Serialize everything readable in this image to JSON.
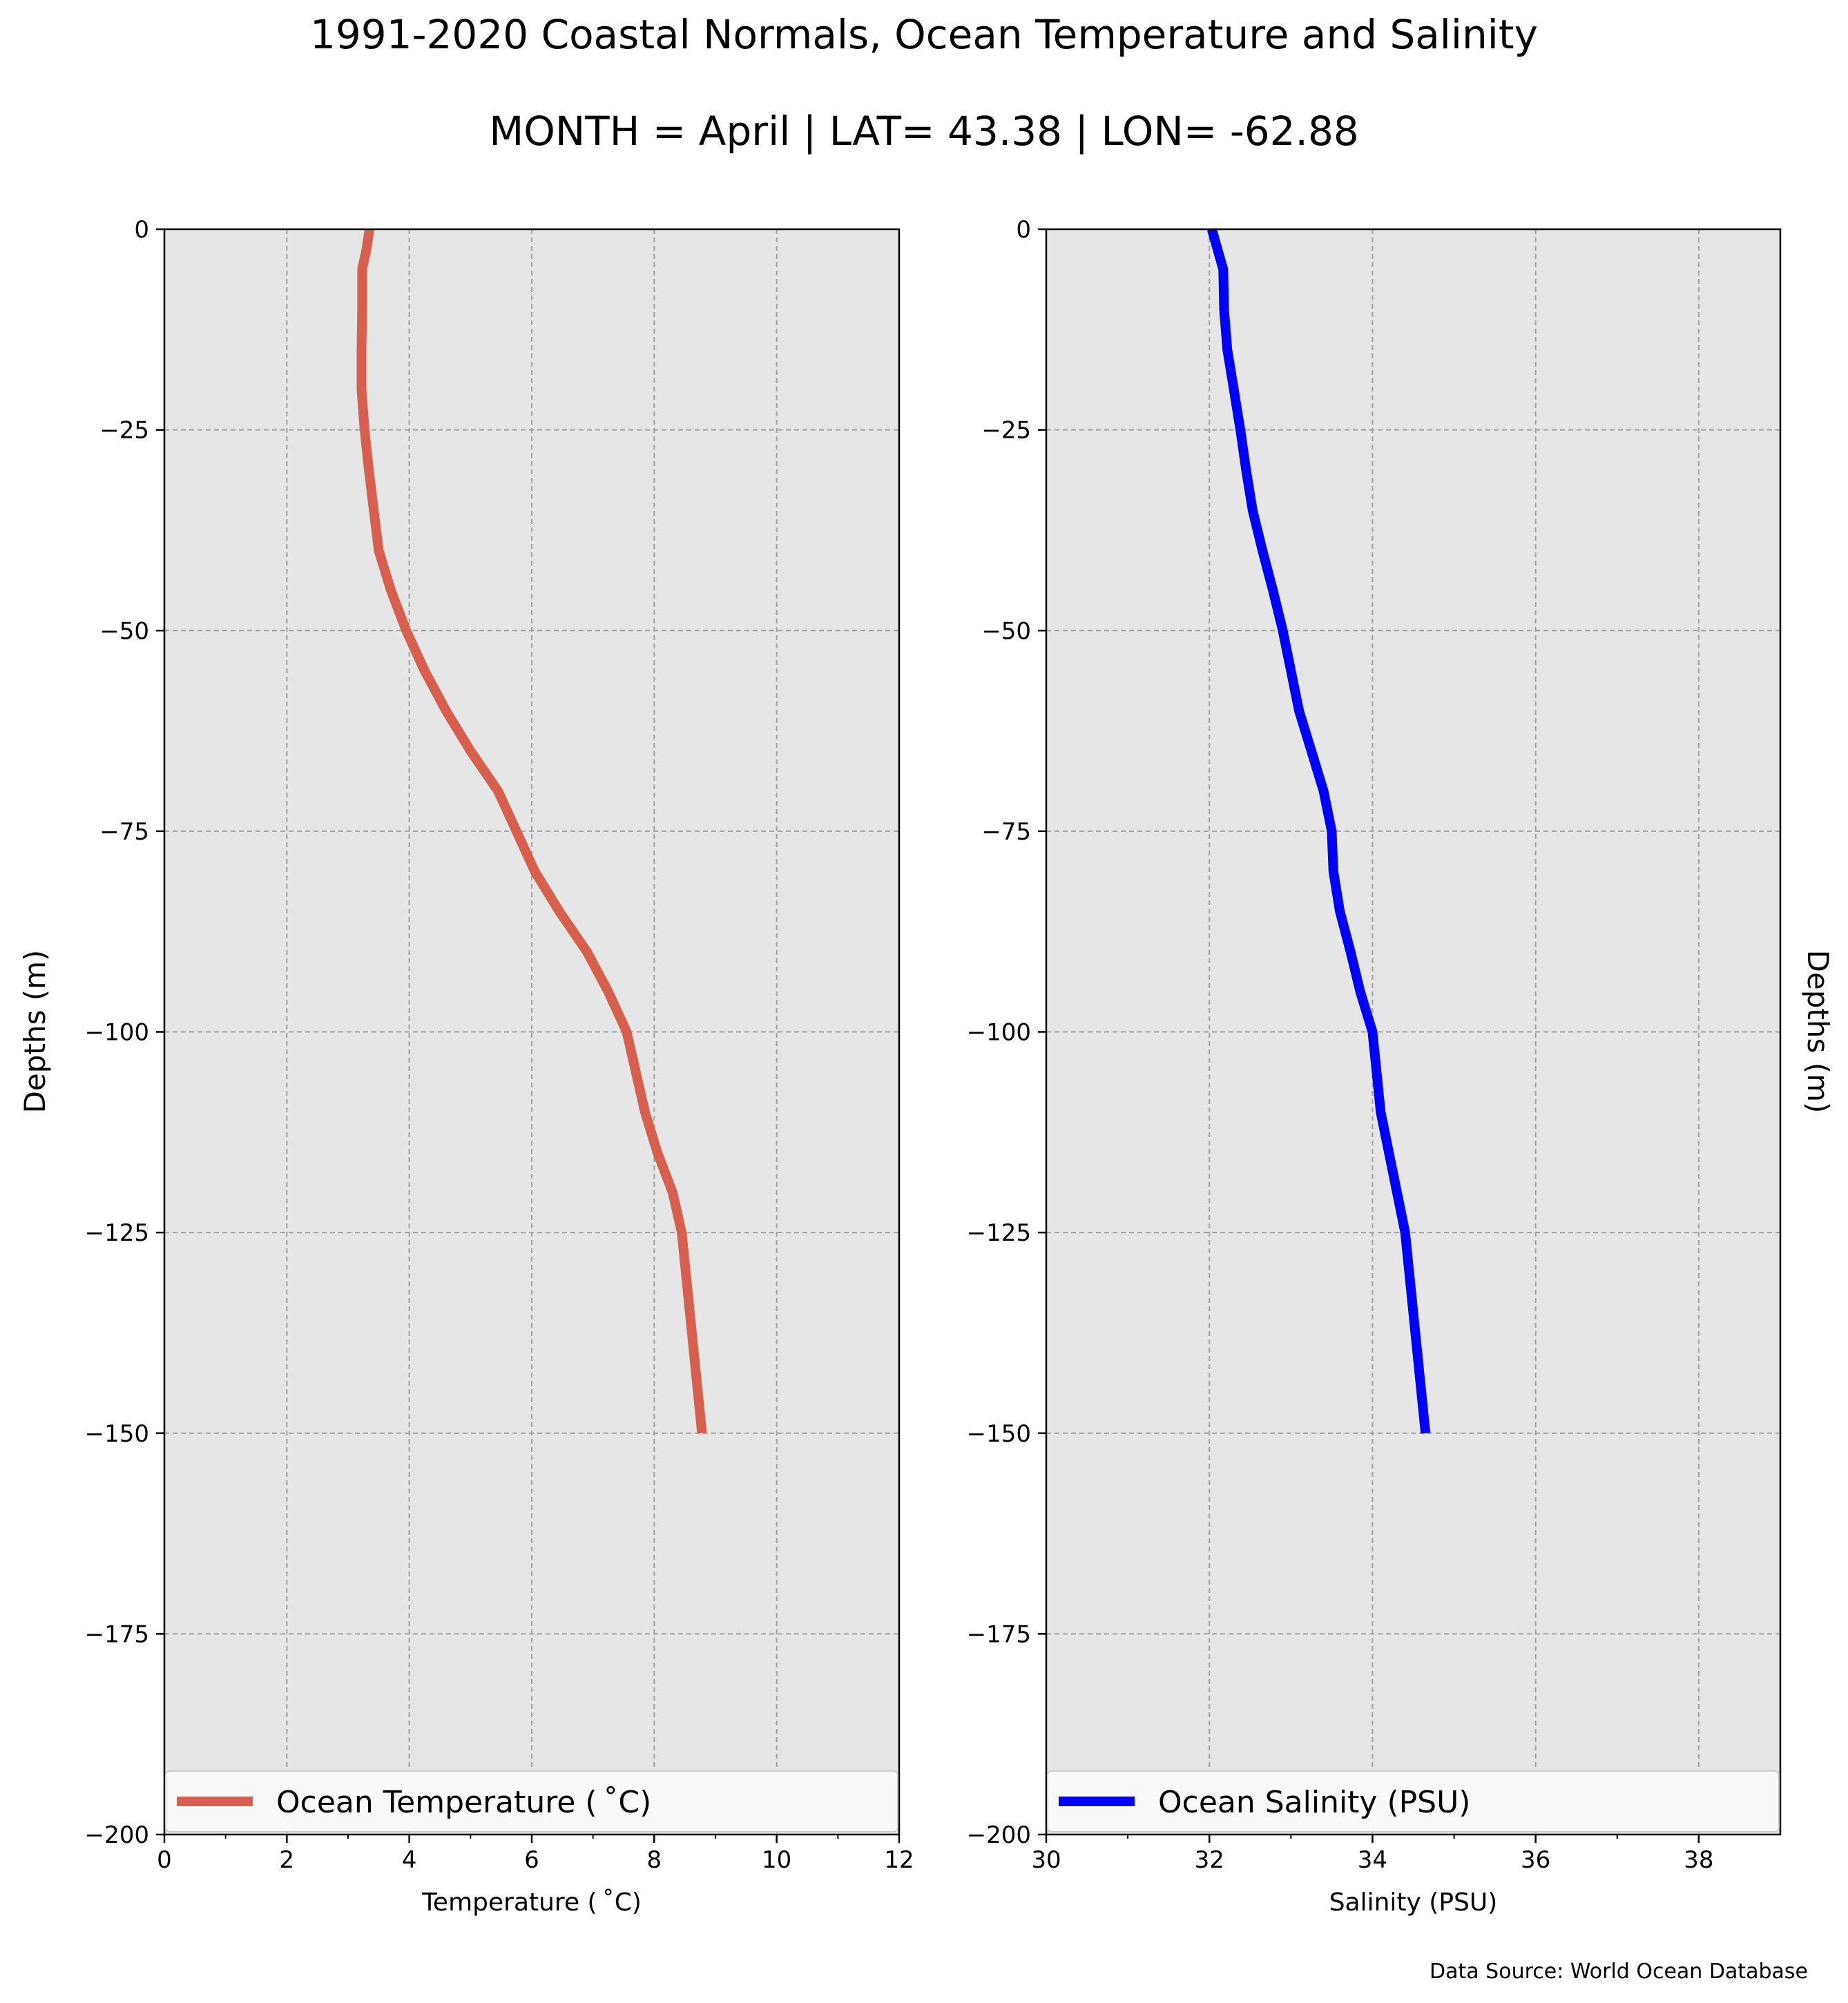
{
  "header": {
    "title": "1991-2020 Coastal Normals, Ocean Temperature and Salinity",
    "subtitle": "MONTH = April | LAT= 43.38 | LON= -62.88"
  },
  "footer": {
    "source": "Data Source: World Ocean Database"
  },
  "colors": {
    "temperature": "#d6604d",
    "salinity": "#0000ff",
    "plot_bg": "#e6e6e6",
    "grid": "#a0a0a0"
  },
  "chart_data": [
    {
      "type": "line",
      "xlabel": "Temperature ($^\\circ$C)",
      "xlabel_text": "Temperature ( ˚C)",
      "ylabel": "Depths (m)",
      "xlim": [
        0,
        12
      ],
      "ylim": [
        -200,
        0
      ],
      "xticks": [
        0,
        2,
        4,
        6,
        8,
        10,
        12
      ],
      "yticks": [
        0,
        -25,
        -50,
        -75,
        -100,
        -125,
        -150,
        -175,
        -200
      ],
      "ytick_labels": [
        "0",
        "−25",
        "−50",
        "−75",
        "−100",
        "−125",
        "−150",
        "−175",
        "−200"
      ],
      "grid": true,
      "legend_position": "bottom",
      "series": [
        {
          "name": "Ocean Temperature ( ˚C)",
          "color": "#d6604d",
          "x": [
            3.35,
            3.3,
            3.23,
            3.23,
            3.22,
            3.22,
            3.27,
            3.34,
            3.42,
            3.5,
            3.7,
            3.95,
            4.25,
            4.6,
            5.0,
            5.45,
            5.75,
            6.05,
            6.45,
            6.9,
            7.25,
            7.55,
            7.85,
            8.05,
            8.3,
            8.45,
            8.78
          ],
          "y": [
            0,
            -2.5,
            -5,
            -10,
            -15,
            -20,
            -25,
            -30,
            -35,
            -40,
            -45,
            -50,
            -55,
            -60,
            -65,
            -70,
            -75,
            -80,
            -85,
            -90,
            -95,
            -100,
            -110,
            -115,
            -120,
            -125,
            -150
          ]
        }
      ]
    },
    {
      "type": "line",
      "xlabel": "Salinity (PSU)",
      "ylabel": "Depths (m)",
      "xlim": [
        30,
        39
      ],
      "ylim": [
        -200,
        0
      ],
      "xticks": [
        30,
        32,
        34,
        36,
        38
      ],
      "yticks": [
        0,
        -25,
        -50,
        -75,
        -100,
        -125,
        -150,
        -175,
        -200
      ],
      "ytick_labels": [
        "0",
        "−25",
        "−50",
        "−75",
        "−100",
        "−125",
        "−150",
        "−175",
        "−200"
      ],
      "grid": true,
      "legend_position": "bottom",
      "series": [
        {
          "name": "Ocean Salinity (PSU)",
          "color": "#0000ff",
          "x": [
            32.03,
            32.1,
            32.17,
            32.18,
            32.22,
            32.3,
            32.38,
            32.45,
            32.53,
            32.65,
            32.78,
            32.9,
            33.0,
            33.1,
            33.25,
            33.4,
            33.5,
            33.52,
            33.6,
            33.73,
            33.85,
            34.0,
            34.1,
            34.2,
            34.3,
            34.4,
            34.65
          ],
          "y": [
            0,
            -2.5,
            -5,
            -10,
            -15,
            -20,
            -25,
            -30,
            -35,
            -40,
            -45,
            -50,
            -55,
            -60,
            -65,
            -70,
            -75,
            -80,
            -85,
            -90,
            -95,
            -100,
            -110,
            -115,
            -120,
            -125,
            -150
          ]
        }
      ]
    }
  ]
}
